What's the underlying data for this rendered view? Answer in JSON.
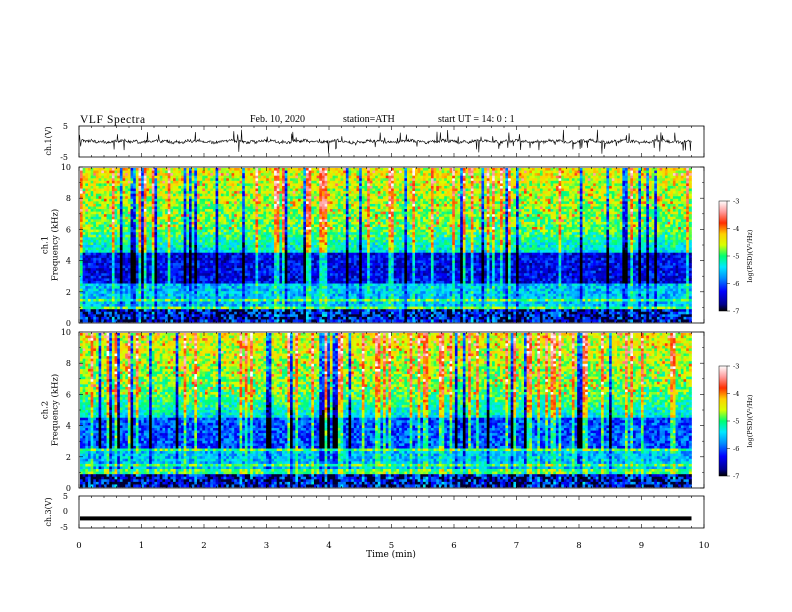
{
  "header": {
    "title": "VLF  Spectra",
    "date": "Feb. 10, 2020",
    "station": "station=ATH",
    "start": "start  UT  =   14: 0  : 1"
  },
  "chart_data": [
    {
      "type": "line",
      "panel": "ch1-waveform",
      "ylabel": "ch.1(V)",
      "ylim": [
        -5,
        5
      ],
      "yticks": [
        "5",
        "-5"
      ],
      "xlim": [
        0,
        10
      ],
      "series": [
        {
          "values": "dense noisy waveform centred near 0 V with spikes up to about ±4 V"
        }
      ]
    },
    {
      "type": "heatmap",
      "panel": "ch1-spectrogram",
      "ylabel": "ch.1\nFrequency  (kHz)",
      "ylim": [
        0,
        10
      ],
      "yticks": [
        "0",
        "2",
        "4",
        "6",
        "8",
        "10"
      ],
      "xlim": [
        0,
        9.8
      ],
      "colorbar": {
        "label": "log(PSD)(V²/Hz)",
        "range": [
          -7,
          -3
        ],
        "ticks": [
          "-3",
          "-4",
          "-5",
          "-6",
          "-7"
        ]
      }
    },
    {
      "type": "heatmap",
      "panel": "ch2-spectrogram",
      "ylabel": "ch.2\nFrequency  (kHz)",
      "ylim": [
        0,
        10
      ],
      "yticks": [
        "0",
        "2",
        "4",
        "6",
        "8",
        "10"
      ],
      "xlim": [
        0,
        9.8
      ],
      "colorbar": {
        "label": "log(PSD)(V²/Hz)",
        "range": [
          -7,
          -3
        ],
        "ticks": [
          "-3",
          "-4",
          "-5",
          "-6",
          "-7"
        ]
      }
    },
    {
      "type": "line",
      "panel": "ch3-waveform",
      "ylabel": "ch.3(V)",
      "ylim": [
        -5,
        5
      ],
      "yticks": [
        "5",
        "0",
        "-5"
      ],
      "xlim": [
        0,
        10
      ],
      "series": [
        {
          "values": "flat trace at about -2 V"
        }
      ]
    }
  ],
  "xaxis": {
    "label": "Time  (min)",
    "ticks": [
      "0",
      "1",
      "2",
      "3",
      "4",
      "5",
      "6",
      "7",
      "8",
      "9",
      "10"
    ]
  },
  "colors": {
    "colormap": [
      "#000000",
      "#00008c",
      "#0000ff",
      "#0090ff",
      "#00e8ff",
      "#00ff70",
      "#d8ff00",
      "#ffd000",
      "#ff3000",
      "#ff9a9a",
      "#ffffff"
    ]
  }
}
